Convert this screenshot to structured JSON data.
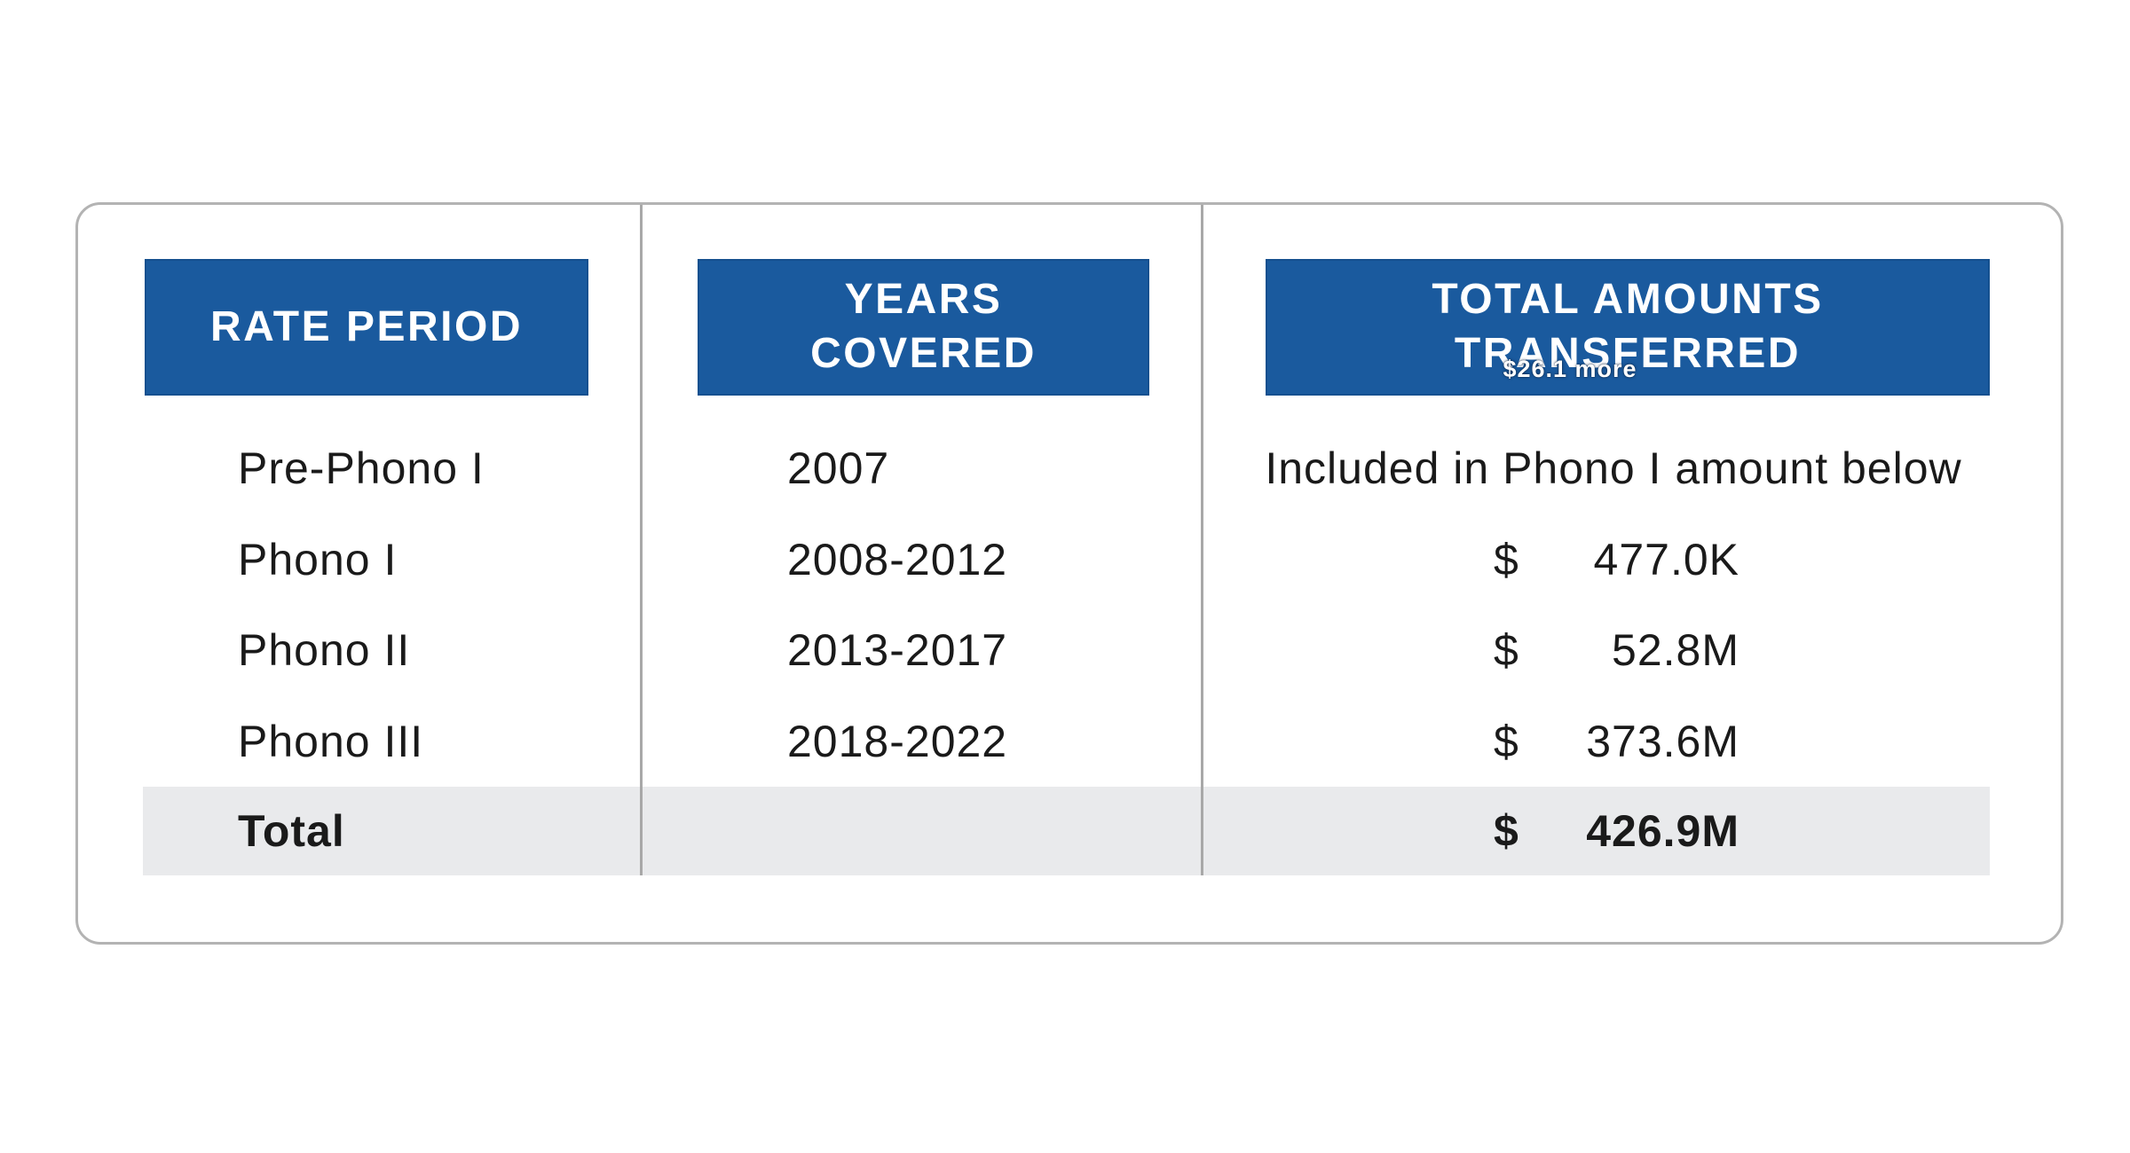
{
  "chart_data": {
    "type": "table",
    "columns": [
      "RATE PERIOD",
      "YEARS COVERED",
      "TOTAL AMOUNTS TRANSFERRED"
    ],
    "rows": [
      [
        "Pre-Phono I",
        "2007",
        "Included in Phono I amount below"
      ],
      [
        "Phono I",
        "2008-2012",
        "$ 477.0K"
      ],
      [
        "Phono II",
        "2013-2017",
        "$ 52.8M"
      ],
      [
        "Phono III",
        "2018-2022",
        "$ 373.6M"
      ],
      [
        "Total",
        "",
        "$ 426.9M"
      ]
    ],
    "annotations": [
      "$26.1 more"
    ],
    "title": "",
    "legend_position": "none",
    "grid": false
  },
  "headers": {
    "rate_period": "RATE PERIOD",
    "years_covered_line1": "YEARS",
    "years_covered_line2": "COVERED",
    "total_amounts_line1": "TOTAL AMOUNTS",
    "total_amounts_line2": "TRANSFERRED"
  },
  "rows": [
    {
      "rate_period": "Pre-Phono I",
      "years": "2007",
      "note": "Included in Phono I amount below"
    },
    {
      "rate_period": "Phono I",
      "years": "2008-2012",
      "currency": "$",
      "amount": "477.0K"
    },
    {
      "rate_period": "Phono II",
      "years": "2013-2017",
      "currency": "$",
      "amount": "52.8M"
    },
    {
      "rate_period": "Phono III",
      "years": "2018-2022",
      "currency": "$",
      "amount": "373.6M"
    }
  ],
  "total": {
    "label": "Total",
    "currency": "$",
    "amount": "426.9M"
  },
  "overlay_note": "$26.1 more",
  "colors": {
    "header_bg": "#1a5a9e",
    "header_border": "#15508f",
    "header_text": "#ffffff",
    "body_text": "#1a1a1a",
    "total_band_bg": "#e9eaec",
    "divider": "#a8a8a8",
    "card_border": "#b3b3b3",
    "background": "#ffffff"
  }
}
